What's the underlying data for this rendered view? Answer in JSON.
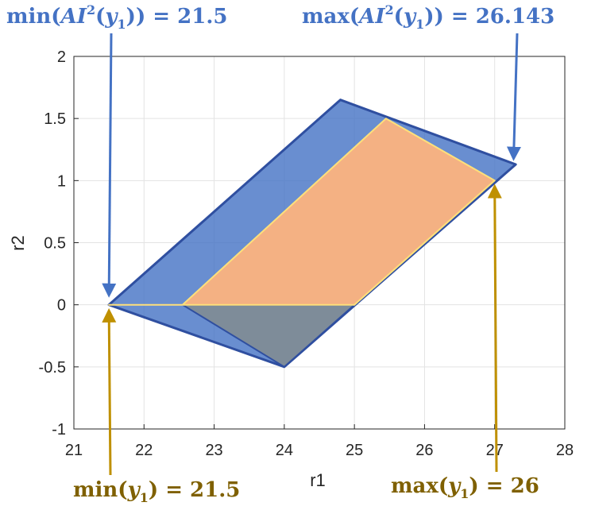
{
  "colors": {
    "blue": "#4472C4",
    "blue_dark": "#2F4FA0",
    "orange": "#F4B183",
    "yellow_edge": "#FFE07A",
    "gray": "#7F8C96",
    "gold": "#BF9000",
    "gold_text": "#7F6000",
    "grid": "#E3E3E3"
  },
  "annotations": {
    "top_left": {
      "prefix": "min(",
      "ai": "AI",
      "sup": "2",
      "y": "y",
      "sub": "1",
      "suffix": ")) =  21.5",
      "value": 21.5,
      "points_to": [
        21.5,
        0
      ]
    },
    "top_right": {
      "prefix": "max(",
      "ai": "AI",
      "sup": "2",
      "y": "y",
      "sub": "1",
      "suffix": ")) =  26.143",
      "value": 26.143,
      "points_to": [
        27.3,
        1.13
      ]
    },
    "bottom_left": {
      "prefix": "min(",
      "y": "y",
      "sub": "1",
      "suffix": ") =  21.5",
      "value": 21.5,
      "points_to": [
        21.5,
        0
      ]
    },
    "bottom_right": {
      "prefix": "max(",
      "y": "y",
      "sub": "1",
      "suffix": ") =  26",
      "value": 26,
      "points_to": [
        27.0,
        1.0
      ]
    }
  },
  "chart_data": {
    "type": "area",
    "xlabel": "r1",
    "ylabel": "r2",
    "xlim": [
      21,
      28
    ],
    "ylim": [
      -1,
      2
    ],
    "xticks": [
      "21",
      "22",
      "23",
      "24",
      "25",
      "26",
      "27",
      "28"
    ],
    "yticks": [
      "-1",
      "-0.5",
      "0",
      "0.5",
      "1",
      "1.5",
      "2"
    ],
    "grid": true,
    "polygons": [
      {
        "id": "blue-region",
        "color": "blue",
        "edge": "blue_dark",
        "opacity": 0.8,
        "points": [
          [
            21.5,
            0
          ],
          [
            24.8,
            1.65
          ],
          [
            27.3,
            1.13
          ],
          [
            24.0,
            -0.5
          ]
        ]
      },
      {
        "id": "gray-region",
        "color": "gray",
        "edge": "blue_dark",
        "opacity": 0.95,
        "points": [
          [
            22.55,
            0
          ],
          [
            25.0,
            0
          ],
          [
            24.0,
            -0.5
          ]
        ]
      },
      {
        "id": "orange-region",
        "color": "orange",
        "edge": "yellow_edge",
        "opacity": 1,
        "points": [
          [
            21.5,
            0
          ],
          [
            25.0,
            0
          ],
          [
            27.0,
            1.0
          ],
          [
            25.45,
            1.5
          ],
          [
            22.55,
            0
          ]
        ]
      }
    ]
  }
}
